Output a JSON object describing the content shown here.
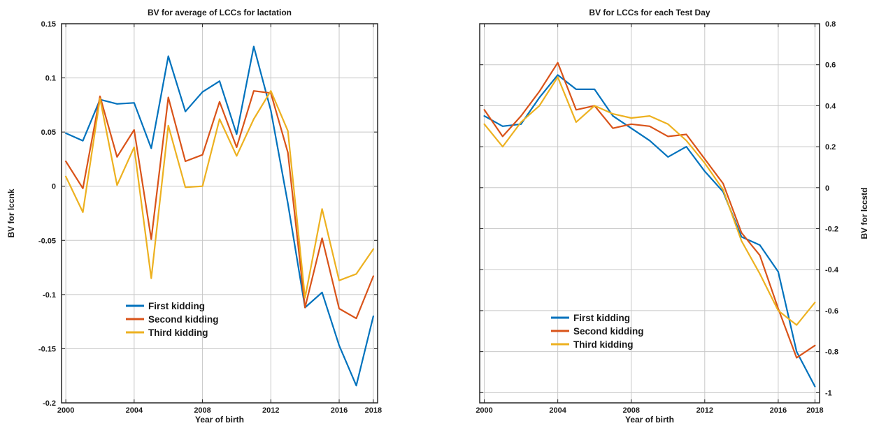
{
  "chart_data": [
    {
      "type": "line",
      "title": "BV for average of LCCs for lactation",
      "xlabel": "Year of birth",
      "ylabel": "BV for lccnk",
      "y_axis_side": "left",
      "xlim": [
        1999.75,
        2018.25
      ],
      "ylim": [
        -0.2,
        0.15
      ],
      "xticks": [
        2000,
        2004,
        2008,
        2012,
        2016,
        2018
      ],
      "xtick_labels": [
        "2000",
        "2004",
        "2008",
        "2012",
        "2016",
        "2018"
      ],
      "yticks": [
        -0.2,
        -0.15,
        -0.1,
        -0.05,
        0,
        0.05,
        0.1,
        0.15
      ],
      "ytick_labels": [
        "-0.2",
        "-0.15",
        "-0.1",
        "-0.05",
        "0",
        "0.05",
        "0.1",
        "0.15"
      ],
      "grid": true,
      "legend_position": "lower-left",
      "x": [
        2000,
        2001,
        2002,
        2003,
        2004,
        2005,
        2006,
        2007,
        2008,
        2009,
        2010,
        2011,
        2012,
        2013,
        2014,
        2015,
        2016,
        2017,
        2018
      ],
      "series": [
        {
          "name": "First kidding",
          "color": "#0072BD",
          "values": [
            0.049,
            0.042,
            0.08,
            0.076,
            0.077,
            0.035,
            0.12,
            0.069,
            0.087,
            0.097,
            0.048,
            0.129,
            0.07,
            -0.016,
            -0.112,
            -0.098,
            -0.147,
            -0.184,
            -0.12
          ]
        },
        {
          "name": "Second kidding",
          "color": "#D95319",
          "values": [
            0.023,
            -0.002,
            0.083,
            0.027,
            0.052,
            -0.049,
            0.082,
            0.023,
            0.029,
            0.078,
            0.036,
            0.088,
            0.086,
            0.031,
            -0.112,
            -0.048,
            -0.113,
            -0.122,
            -0.083
          ]
        },
        {
          "name": "Third kidding",
          "color": "#EDB120",
          "values": [
            0.009,
            -0.024,
            0.081,
            0.001,
            0.036,
            -0.085,
            0.056,
            -0.001,
            0.0,
            0.062,
            0.028,
            0.062,
            0.088,
            0.051,
            -0.103,
            -0.021,
            -0.087,
            -0.081,
            -0.058
          ]
        }
      ]
    },
    {
      "type": "line",
      "title": "BV for LCCs for each Test Day",
      "xlabel": "Year of birth",
      "ylabel": "BV for lccstd",
      "y_axis_side": "right",
      "xlim": [
        1999.75,
        2018.25
      ],
      "ylim": [
        -1.05,
        0.8
      ],
      "xticks": [
        2000,
        2004,
        2008,
        2012,
        2016,
        2018
      ],
      "xtick_labels": [
        "2000",
        "2004",
        "2008",
        "2012",
        "2016",
        "2018"
      ],
      "yticks": [
        -1,
        -0.8,
        -0.6,
        -0.4,
        -0.2,
        0,
        0.2,
        0.4,
        0.6,
        0.8
      ],
      "ytick_labels": [
        "-1",
        "-0.8",
        "-0.6",
        "-0.4",
        "-0.2",
        "0",
        "0.2",
        "0.4",
        "0.6",
        "0.8"
      ],
      "grid": true,
      "legend_position": "lower-left",
      "x": [
        2000,
        2001,
        2002,
        2003,
        2004,
        2005,
        2006,
        2007,
        2008,
        2009,
        2010,
        2011,
        2012,
        2013,
        2014,
        2015,
        2016,
        2017,
        2018
      ],
      "series": [
        {
          "name": "First kidding",
          "color": "#0072BD",
          "values": [
            0.35,
            0.3,
            0.31,
            0.44,
            0.55,
            0.48,
            0.48,
            0.35,
            0.29,
            0.23,
            0.15,
            0.2,
            0.08,
            -0.02,
            -0.24,
            -0.28,
            -0.41,
            -0.8,
            -0.97
          ]
        },
        {
          "name": "Second kidding",
          "color": "#D95319",
          "values": [
            0.38,
            0.25,
            0.35,
            0.47,
            0.61,
            0.38,
            0.4,
            0.29,
            0.31,
            0.3,
            0.25,
            0.26,
            0.14,
            0.02,
            -0.22,
            -0.33,
            -0.59,
            -0.83,
            -0.77
          ]
        },
        {
          "name": "Third kidding",
          "color": "#EDB120",
          "values": [
            0.31,
            0.2,
            0.32,
            0.4,
            0.54,
            0.32,
            0.4,
            0.36,
            0.34,
            0.35,
            0.31,
            0.23,
            0.12,
            -0.01,
            -0.26,
            -0.42,
            -0.6,
            -0.67,
            -0.56
          ]
        }
      ]
    }
  ]
}
